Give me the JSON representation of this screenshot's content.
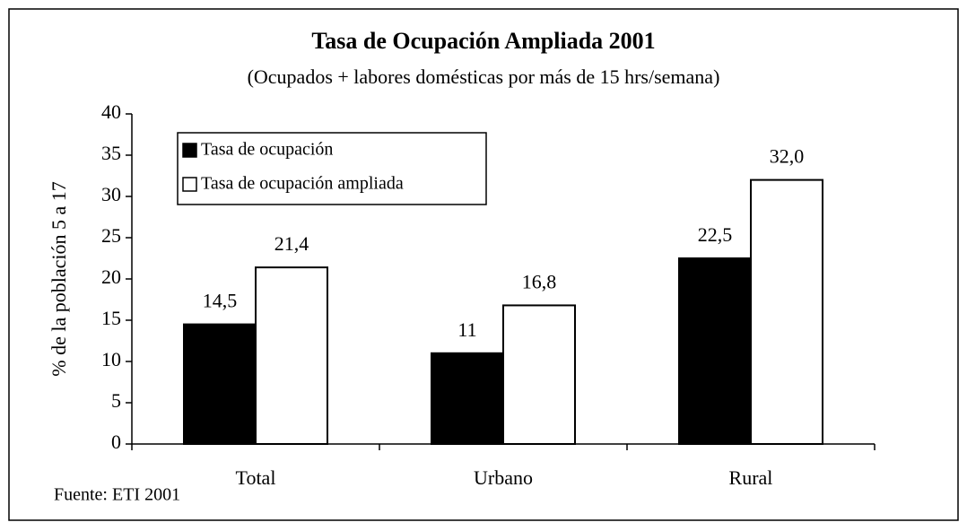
{
  "chart_data": {
    "type": "bar",
    "title": "Tasa de Ocupación Ampliada 2001",
    "subtitle": "(Ocupados + labores domésticas por más de 15 hrs/semana)",
    "y_label": "% de la población 5 a 17",
    "source": "Fuente: ETI 2001",
    "categories": [
      "Total",
      "Urbano",
      "Rural"
    ],
    "series": [
      {
        "name": "Tasa de ocupación",
        "color": "#000000",
        "values": [
          14.5,
          11,
          22.5
        ],
        "value_labels": [
          "14,5",
          "11",
          "22,5"
        ]
      },
      {
        "name": "Tasa de ocupación ampliada",
        "color": "#ffffff",
        "values": [
          21.4,
          16.8,
          32.0
        ],
        "value_labels": [
          "21,4",
          "16,8",
          "32,0"
        ]
      }
    ],
    "ylim": [
      0,
      40
    ],
    "yticks": [
      0,
      5,
      10,
      15,
      20,
      25,
      30,
      35,
      40
    ],
    "legend": "upper left"
  }
}
